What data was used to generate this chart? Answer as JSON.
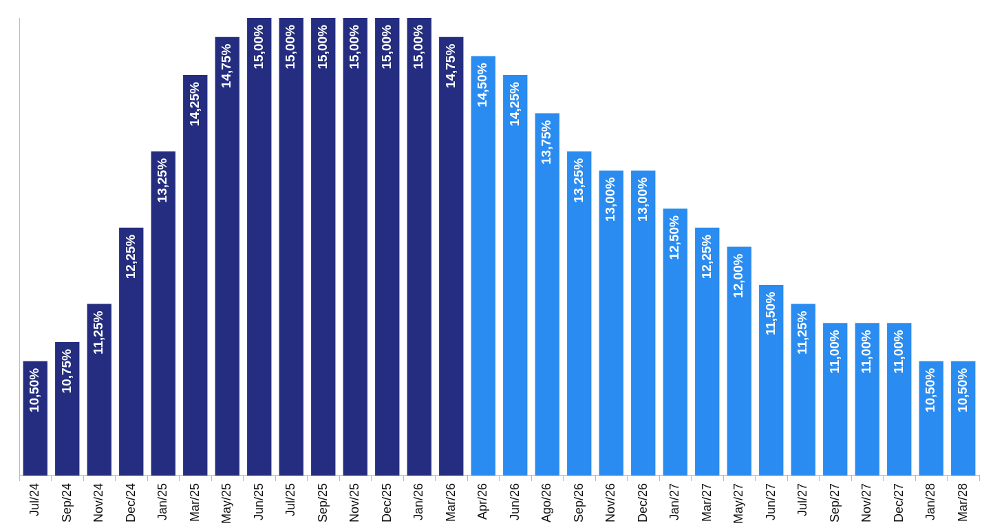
{
  "chart_data": {
    "type": "bar",
    "categories": [
      "Jul/24",
      "Sep/24",
      "Nov/24",
      "Dec/24",
      "Jan/25",
      "Mar/25",
      "May/25",
      "Jun/25",
      "Jul/25",
      "Sep/25",
      "Nov/25",
      "Dec/25",
      "Jan/26",
      "Mar/26",
      "Apr/26",
      "Jun/26",
      "Ago/26",
      "Sep/26",
      "Nov/26",
      "Dec/26",
      "Jan/27",
      "Mar/27",
      "May/27",
      "Jun/27",
      "Jul/27",
      "Sep/27",
      "Nov/27",
      "Dec/27",
      "Jan/28",
      "Mar/28"
    ],
    "values": [
      10.5,
      10.75,
      11.25,
      12.25,
      13.25,
      14.25,
      14.75,
      15,
      15,
      15,
      15,
      15,
      15,
      14.75,
      14.5,
      14.25,
      13.75,
      13.25,
      13,
      13,
      12.5,
      12.25,
      12,
      11.5,
      11.25,
      11,
      11,
      11,
      10.5,
      10.5
    ],
    "value_labels": [
      "10,50%",
      "10,75%",
      "11,25%",
      "12,25%",
      "13,25%",
      "14,25%",
      "14,75%",
      "15,00%",
      "15,00%",
      "15,00%",
      "15,00%",
      "15,00%",
      "15,00%",
      "14,75%",
      "14,50%",
      "14,25%",
      "13,75%",
      "13,25%",
      "13,00%",
      "13,00%",
      "12,50%",
      "12,25%",
      "12,00%",
      "11,50%",
      "11,25%",
      "11,00%",
      "11,00%",
      "11,00%",
      "10,50%",
      "10,50%"
    ],
    "colors": [
      "#252d80",
      "#252d80",
      "#252d80",
      "#252d80",
      "#252d80",
      "#252d80",
      "#252d80",
      "#252d80",
      "#252d80",
      "#252d80",
      "#252d80",
      "#252d80",
      "#252d80",
      "#252d80",
      "#2a8cf0",
      "#2a8cf0",
      "#2a8cf0",
      "#2a8cf0",
      "#2a8cf0",
      "#2a8cf0",
      "#2a8cf0",
      "#2a8cf0",
      "#2a8cf0",
      "#2a8cf0",
      "#2a8cf0",
      "#2a8cf0",
      "#2a8cf0",
      "#2a8cf0",
      "#2a8cf0",
      "#2a8cf0"
    ],
    "ylim": [
      9,
      15
    ],
    "tick_labels": "x",
    "legend": false,
    "grid": false
  }
}
